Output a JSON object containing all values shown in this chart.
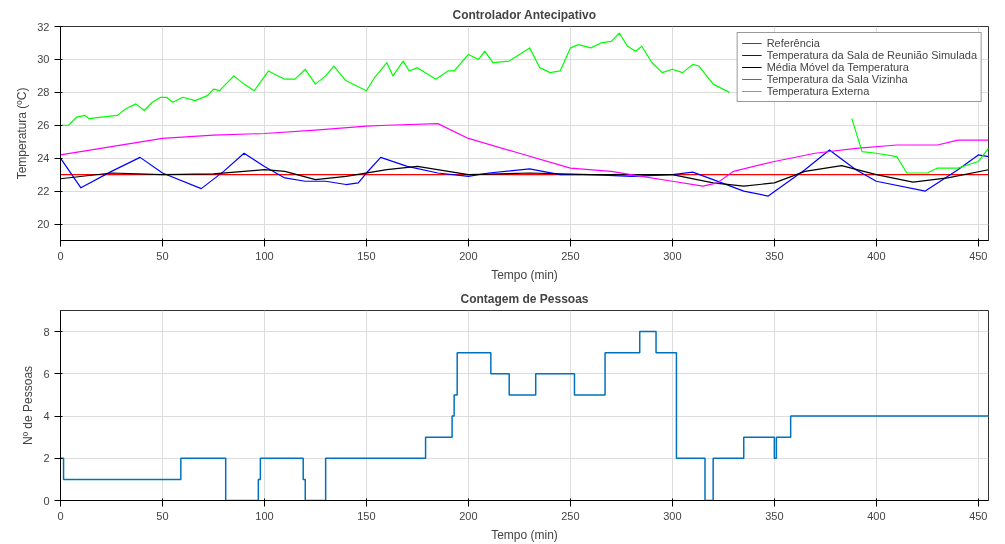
{
  "chart_data": [
    {
      "type": "line",
      "title": "Controlador Antecipativo",
      "xlabel": "Tempo (min)",
      "ylabel": "Temperatura (ºC)",
      "xlim": [
        0,
        455
      ],
      "ylim": [
        19,
        32
      ],
      "xticks": [
        0,
        50,
        100,
        150,
        200,
        250,
        300,
        350,
        400,
        450
      ],
      "yticks": [
        20,
        22,
        24,
        26,
        28,
        30,
        32
      ],
      "grid": true,
      "legend": "top right",
      "series": [
        {
          "name": "Referência",
          "color": "#ff0000",
          "x": [
            0,
            455
          ],
          "values": [
            23,
            23
          ]
        },
        {
          "name": "Temperatura da Sala de Reunião Simulada",
          "color": "#0000ff",
          "x": [
            0,
            10,
            25,
            39,
            50,
            69,
            80,
            90,
            100,
            110,
            120,
            130,
            140,
            146,
            150,
            157,
            170,
            185,
            200,
            210,
            230,
            245,
            260,
            280,
            300,
            310,
            320,
            335,
            347,
            365,
            377,
            390,
            400,
            424,
            440,
            450,
            455
          ],
          "values": [
            24,
            22.2,
            23.2,
            24.05,
            23.1,
            22.15,
            23.2,
            24.3,
            23.5,
            22.8,
            22.6,
            22.6,
            22.4,
            22.5,
            23.1,
            24.05,
            23.5,
            23.1,
            22.9,
            23.1,
            23.35,
            23.0,
            23.0,
            22.9,
            23.0,
            23.15,
            22.7,
            22.0,
            21.7,
            23.3,
            24.5,
            23.3,
            22.6,
            22.0,
            23.3,
            24.2,
            24.1
          ]
        },
        {
          "name": "Média Móvel da Temperatura",
          "color": "#000000",
          "x": [
            0,
            25,
            50,
            75,
            100,
            110,
            125,
            140,
            160,
            175,
            200,
            230,
            260,
            300,
            320,
            335,
            350,
            365,
            383,
            400,
            418,
            435,
            455
          ],
          "values": [
            22.75,
            23.1,
            23.0,
            23.05,
            23.3,
            23.2,
            22.7,
            22.9,
            23.3,
            23.5,
            23.0,
            23.1,
            23.0,
            23.0,
            22.5,
            22.3,
            22.5,
            23.2,
            23.55,
            23.0,
            22.55,
            22.8,
            23.3
          ]
        },
        {
          "name": "Temperatura da Sala Vizinha",
          "color": "#ff00ff",
          "x": [
            0,
            25,
            50,
            75,
            100,
            125,
            150,
            160,
            185,
            200,
            225,
            250,
            270,
            285,
            300,
            315,
            322,
            330,
            350,
            370,
            390,
            410,
            430,
            440,
            455
          ],
          "values": [
            24.2,
            24.7,
            25.2,
            25.4,
            25.5,
            25.7,
            25.95,
            26.0,
            26.1,
            25.2,
            24.3,
            23.4,
            23.2,
            22.9,
            22.6,
            22.3,
            22.5,
            23.2,
            23.8,
            24.3,
            24.6,
            24.8,
            24.8,
            25.1,
            25.1
          ]
        },
        {
          "name": "Temperatura Externa",
          "color": "#00ff00",
          "x": [
            0,
            4,
            8,
            12,
            14,
            20,
            28,
            32,
            37,
            41,
            45,
            49,
            52,
            55,
            60,
            66,
            72,
            75,
            78,
            85,
            90,
            95,
            102,
            105,
            110,
            115,
            120,
            125,
            130,
            134,
            140,
            145,
            150,
            154,
            160,
            163,
            168,
            171,
            175,
            184,
            190,
            193,
            200,
            205,
            208,
            212,
            220,
            230,
            235,
            240,
            245,
            250,
            254,
            260,
            265,
            270,
            274,
            278,
            282,
            285,
            290,
            295,
            300,
            305,
            310,
            313,
            320,
            328,
            340,
            388,
            393,
            400,
            410,
            415,
            425,
            430,
            440,
            450,
            455
          ],
          "values": [
            26.0,
            26.0,
            26.5,
            26.6,
            26.4,
            26.5,
            26.6,
            27.0,
            27.3,
            26.9,
            27.4,
            27.7,
            27.7,
            27.4,
            27.7,
            27.5,
            27.8,
            28.2,
            28.1,
            29.0,
            28.5,
            28.1,
            29.3,
            29.1,
            28.8,
            28.8,
            29.4,
            28.5,
            29.0,
            29.6,
            28.7,
            28.4,
            28.1,
            28.9,
            29.8,
            29.0,
            29.9,
            29.3,
            29.5,
            28.8,
            29.3,
            29.3,
            30.3,
            30.0,
            30.5,
            29.8,
            29.9,
            30.7,
            29.5,
            29.2,
            29.3,
            30.7,
            30.9,
            30.7,
            31.0,
            31.1,
            31.6,
            30.8,
            30.5,
            30.8,
            29.8,
            29.2,
            29.4,
            29.2,
            29.7,
            29.6,
            28.5,
            28.0,
            null,
            26.4,
            24.4,
            24.3,
            24.1,
            23.1,
            23.1,
            23.4,
            23.4,
            23.8,
            24.6
          ]
        }
      ]
    },
    {
      "type": "step",
      "title": "Contagem de Pessoas",
      "xlabel": "Tempo (min)",
      "ylabel": "Nº de Pessoas",
      "xlim": [
        0,
        455
      ],
      "ylim": [
        0,
        9
      ],
      "xticks": [
        0,
        50,
        100,
        150,
        200,
        250,
        300,
        350,
        400,
        450
      ],
      "yticks": [
        0,
        2,
        4,
        6,
        8
      ],
      "grid": true,
      "series": [
        {
          "color": "#0072bd",
          "x": [
            0,
            1.5,
            59,
            81,
            97,
            98,
            119,
            120,
            130,
            179,
            192,
            193,
            194.5,
            211,
            220,
            233,
            252,
            267,
            284,
            292,
            302,
            316,
            320,
            335,
            350,
            351,
            358,
            455
          ],
          "values": [
            2,
            1,
            2,
            0,
            1,
            2,
            1,
            0,
            2,
            3,
            4,
            5,
            7,
            6,
            5,
            6,
            5,
            7,
            8,
            7,
            2,
            0,
            2,
            3,
            2,
            3,
            4,
            4
          ]
        }
      ]
    }
  ]
}
